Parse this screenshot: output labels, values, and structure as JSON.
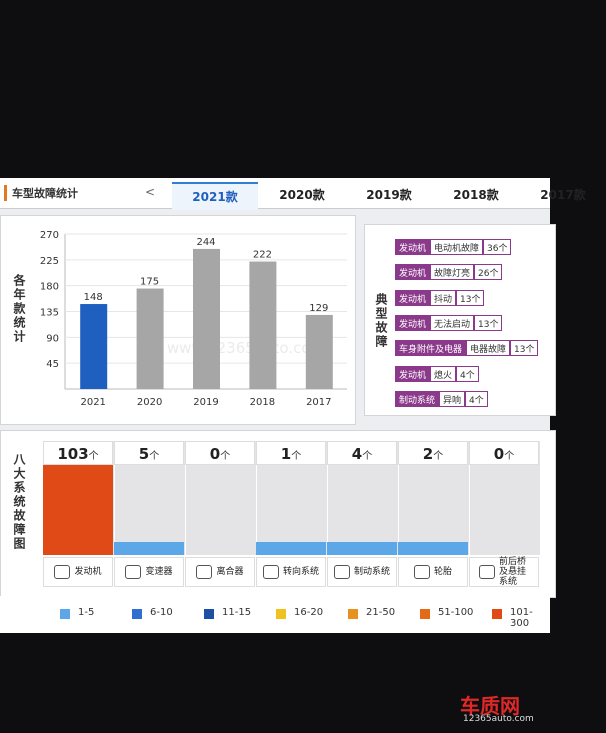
{
  "header": {
    "title": "车型故障统计",
    "back": "<",
    "tabs": [
      "2021款",
      "2020款",
      "2019款",
      "2018款",
      "2017款"
    ],
    "active_tab": 0
  },
  "chart_data": {
    "type": "bar",
    "y_label": "各年款统计",
    "categories": [
      "2021",
      "2020",
      "2019",
      "2018",
      "2017"
    ],
    "values": [
      148,
      175,
      244,
      222,
      129
    ],
    "colors": [
      "#1f5fbf",
      "#a6a6a6",
      "#a6a6a6",
      "#a6a6a6",
      "#a6a6a6"
    ],
    "ylim": [
      0,
      270
    ],
    "yticks": [
      45,
      90,
      135,
      180,
      225,
      270
    ],
    "grid": true,
    "watermark": "www.12365auto.com"
  },
  "typical_faults": {
    "label": "典型故障",
    "items": [
      {
        "system": "发动机",
        "fault": "电动机故障",
        "count": "36个"
      },
      {
        "system": "发动机",
        "fault": "故障灯亮",
        "count": "26个"
      },
      {
        "system": "发动机",
        "fault": "抖动",
        "count": "13个"
      },
      {
        "system": "发动机",
        "fault": "无法启动",
        "count": "13个"
      },
      {
        "system": "车身附件及电器",
        "fault": "电器故障",
        "count": "13个"
      },
      {
        "system": "发动机",
        "fault": "熄火",
        "count": "4个"
      },
      {
        "system": "制动系统",
        "fault": "异响",
        "count": "4个"
      }
    ]
  },
  "systems": {
    "label": "八大系统故障图",
    "unit": "个",
    "items": [
      {
        "name": "发动机",
        "count": 103
      },
      {
        "name": "变速器",
        "count": 5
      },
      {
        "name": "离合器",
        "count": 0
      },
      {
        "name": "转向系统",
        "count": 1
      },
      {
        "name": "制动系统",
        "count": 4
      },
      {
        "name": "轮胎",
        "count": 2
      },
      {
        "name": "前后桥及悬挂系统",
        "count": 0
      }
    ],
    "legend": [
      {
        "label": "1-5",
        "min": 1,
        "max": 5,
        "color": "#5ba7e8"
      },
      {
        "label": "6-10",
        "min": 6,
        "max": 10,
        "color": "#2f6fd0"
      },
      {
        "label": "11-15",
        "min": 11,
        "max": 15,
        "color": "#1d4fa6"
      },
      {
        "label": "16-20",
        "min": 16,
        "max": 20,
        "color": "#f0c21e"
      },
      {
        "label": "21-50",
        "min": 21,
        "max": 50,
        "color": "#e8911f"
      },
      {
        "label": "51-100",
        "min": 51,
        "max": 100,
        "color": "#e36b17"
      },
      {
        "label": "101-300",
        "min": 101,
        "max": 300,
        "color": "#e04a17"
      }
    ]
  },
  "logo": {
    "name": "车质网",
    "url": "12365auto.com"
  }
}
